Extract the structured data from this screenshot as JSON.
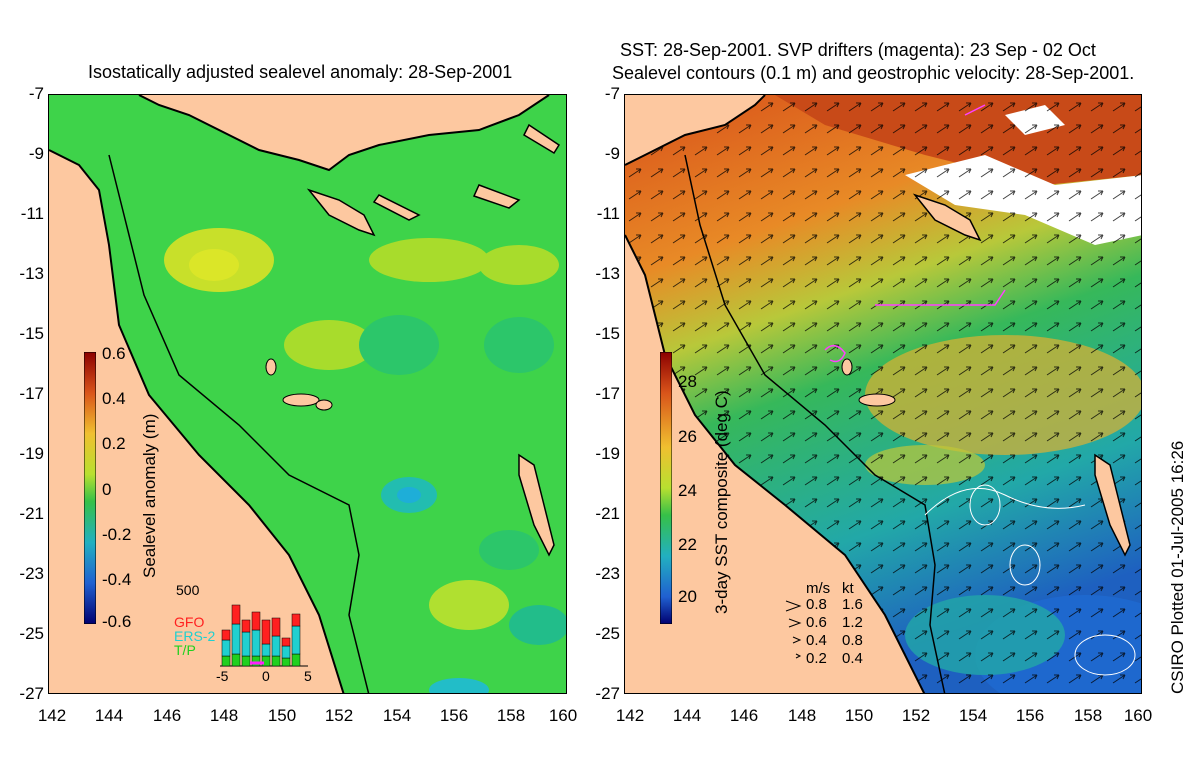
{
  "left_panel": {
    "title": "Isostatically adjusted sealevel anomaly: 28-Sep-2001",
    "colorbar_label": "Sealevel anomaly (m)",
    "colorbar_ticks": [
      "0.6",
      "0.4",
      "0.2",
      "0",
      "-0.2",
      "-0.4",
      "-0.6"
    ],
    "inset": {
      "ymax_label": "500",
      "legend": [
        {
          "name": "GFO",
          "color": "#ff2020"
        },
        {
          "name": "ERS-2",
          "color": "#20e0e0"
        },
        {
          "name": "T/P",
          "color": "#20e020"
        }
      ],
      "xticks": [
        "-5",
        "0",
        "5"
      ]
    }
  },
  "right_panel": {
    "title_line1": "SST: 28-Sep-2001. SVP drifters (magenta): 23 Sep - 02 Oct",
    "title_line2": "Sealevel contours (0.1 m) and geostrophic velocity: 28-Sep-2001.",
    "colorbar_label": "3-day SST composite (deg C)",
    "colorbar_ticks": [
      "28",
      "26",
      "24",
      "22",
      "20"
    ],
    "velocity_legend": {
      "header_ms": "m/s",
      "header_kt": "kt",
      "rows": [
        {
          "ms": "0.8",
          "kt": "1.6"
        },
        {
          "ms": "0.6",
          "kt": "1.2"
        },
        {
          "ms": "0.4",
          "kt": "0.8"
        },
        {
          "ms": "0.2",
          "kt": "0.4"
        }
      ]
    }
  },
  "axes": {
    "y_ticks": [
      "-7",
      "-9",
      "-11",
      "-13",
      "-15",
      "-17",
      "-19",
      "-21",
      "-23",
      "-25",
      "-27"
    ],
    "x_ticks": [
      "142",
      "144",
      "146",
      "148",
      "150",
      "152",
      "154",
      "156",
      "158",
      "160"
    ]
  },
  "credit": "CSIRO Plotted 01-Jul-2005 16:26",
  "colors": {
    "land": "#fdc8a0",
    "sla_green": "#3ed34a",
    "sst_green": "#36b85a"
  }
}
